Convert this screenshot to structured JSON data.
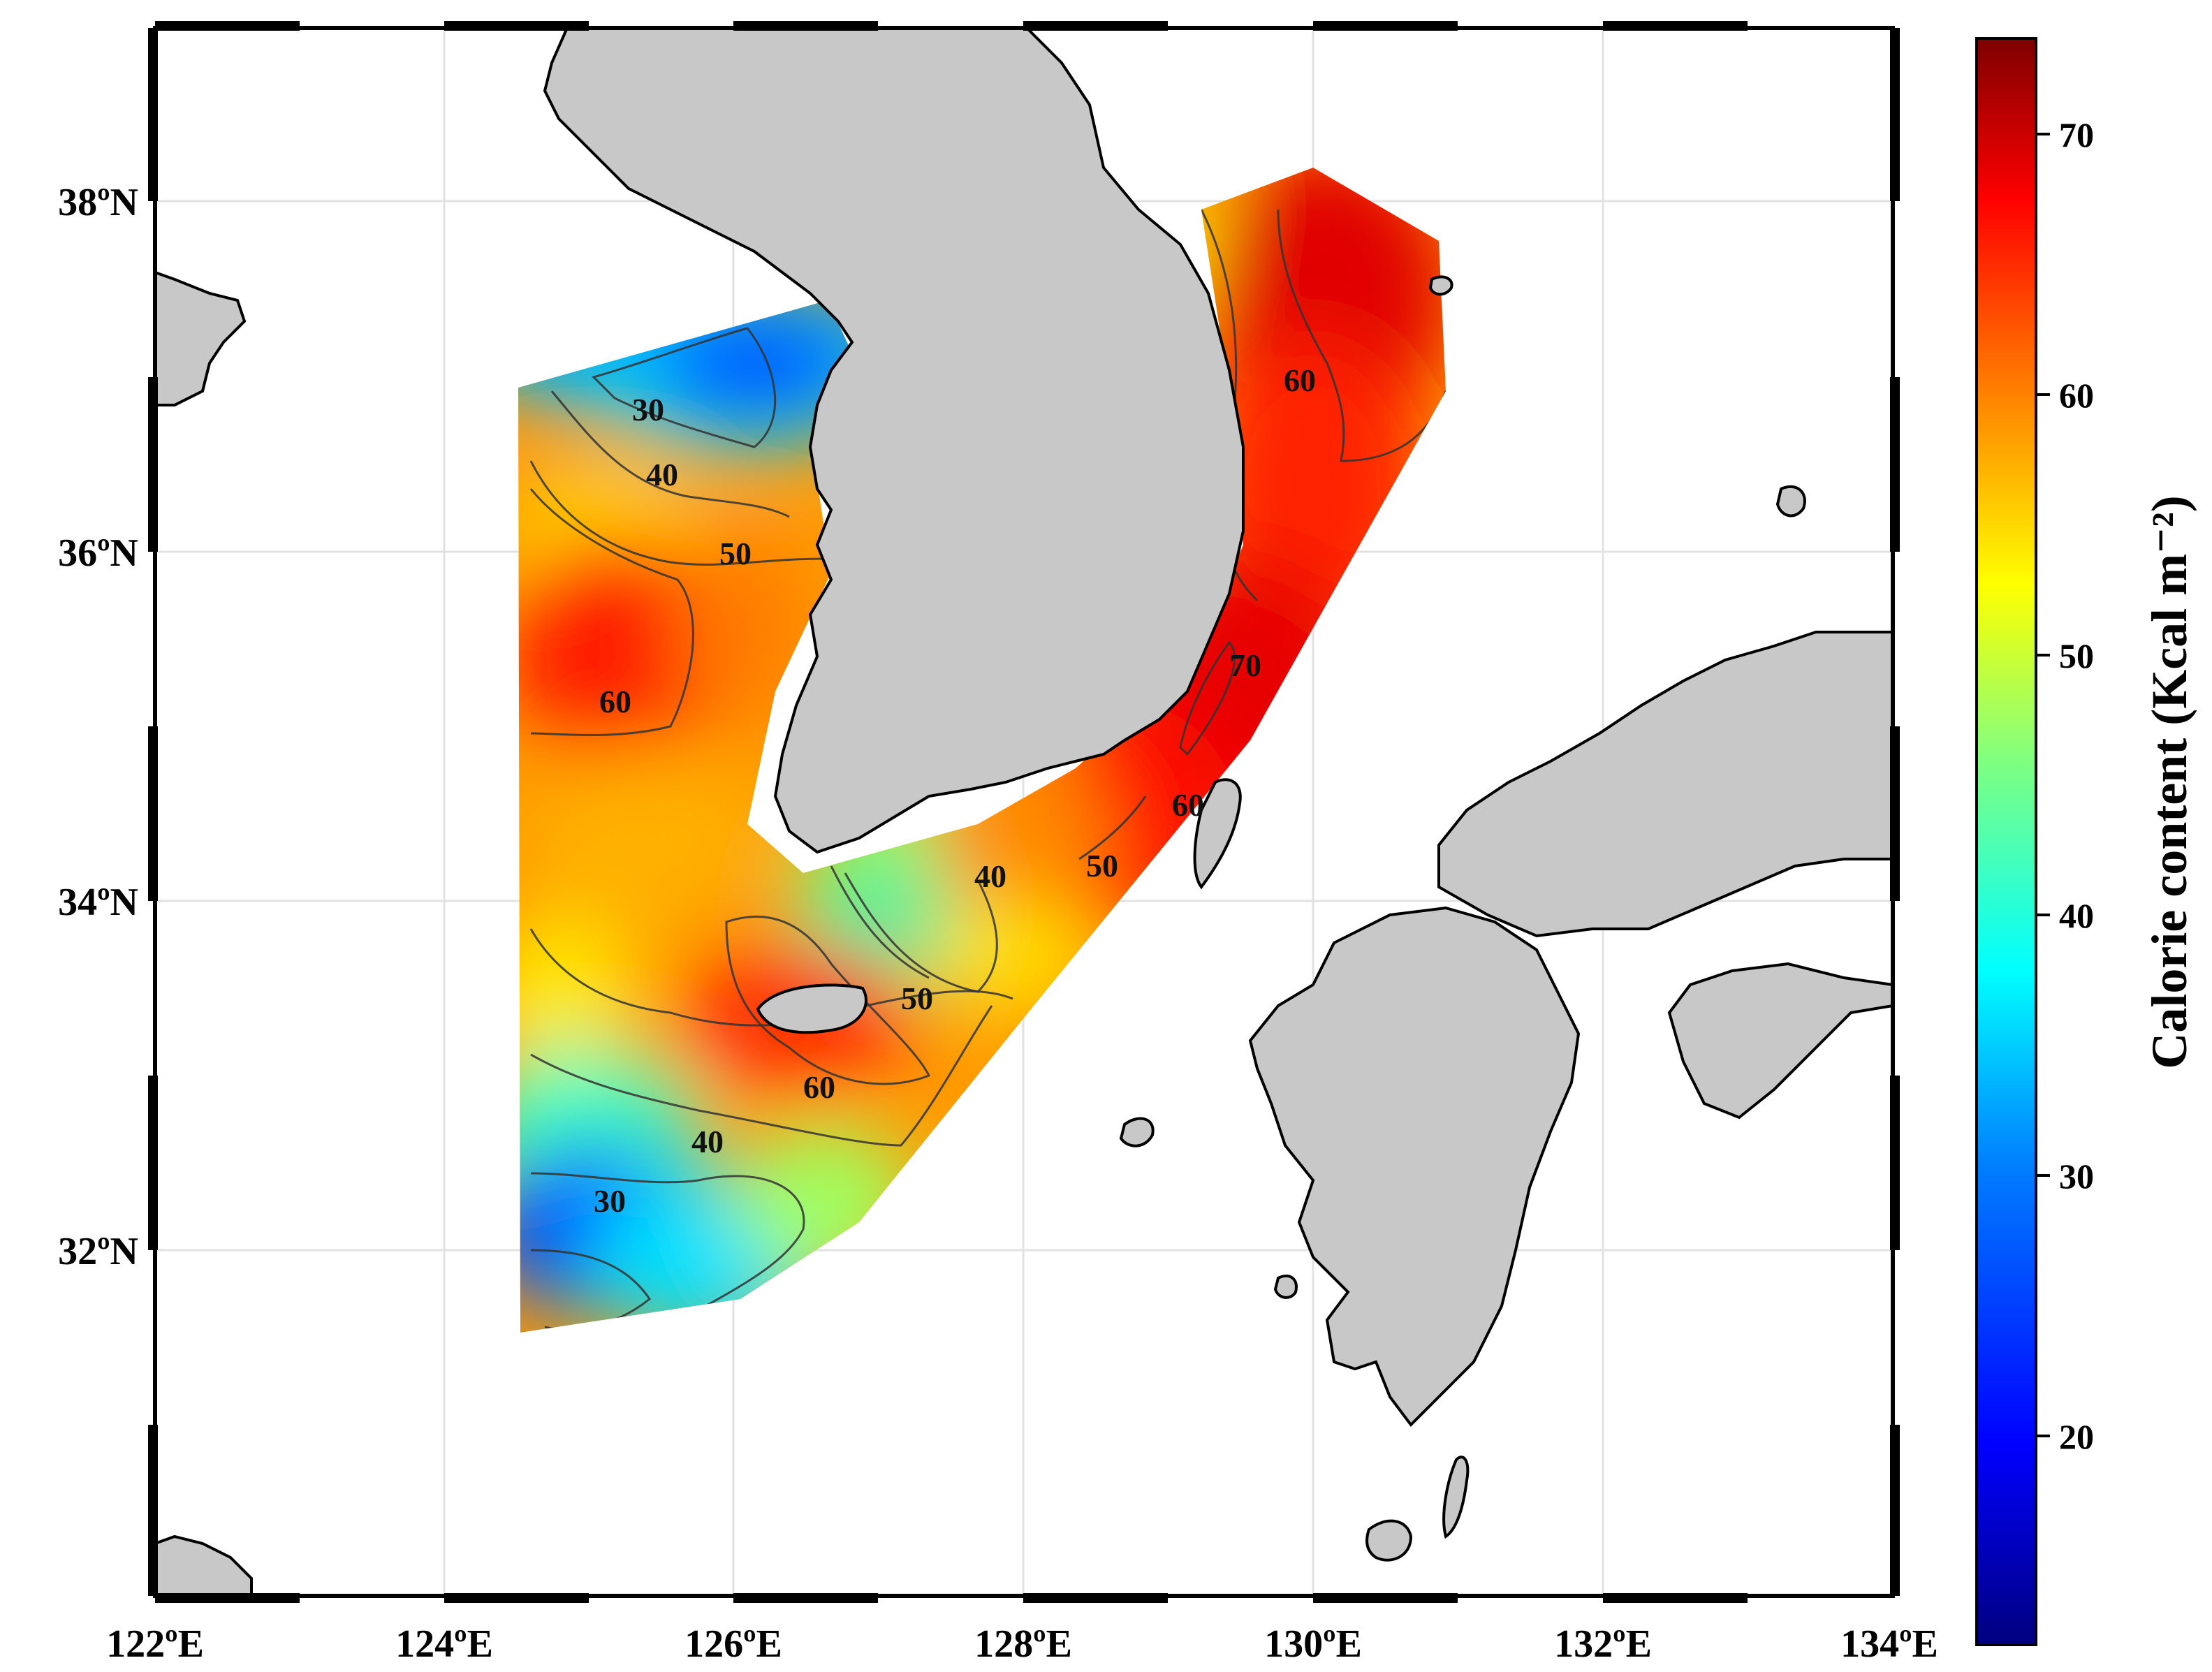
{
  "map": {
    "lon_ticks": [
      "122ºE",
      "124ºE",
      "126ºE",
      "128ºE",
      "130ºE",
      "132ºE",
      "134ºE"
    ],
    "lat_ticks": [
      "32ºN",
      "34ºN",
      "36ºN",
      "38ºN"
    ],
    "lon_range": [
      122,
      134
    ],
    "lat_range": [
      30.05,
      39.0
    ]
  },
  "contour_labels": [
    "30",
    "40",
    "50",
    "60",
    "60",
    "70",
    "60",
    "50",
    "40",
    "50",
    "60",
    "40",
    "30"
  ],
  "colorbar": {
    "title": "Calorie content (Kcal m⁻²)",
    "tick_labels": [
      "20",
      "30",
      "40",
      "50",
      "60",
      "70"
    ],
    "ticks": [
      20,
      30,
      40,
      50,
      60,
      70
    ],
    "range": [
      11,
      73
    ],
    "colormap": "jet",
    "colors": [
      "#00007f",
      "#0000ff",
      "#0080ff",
      "#00ffff",
      "#80ff80",
      "#ffff00",
      "#ff8000",
      "#ff0000",
      "#7f0000"
    ]
  }
}
